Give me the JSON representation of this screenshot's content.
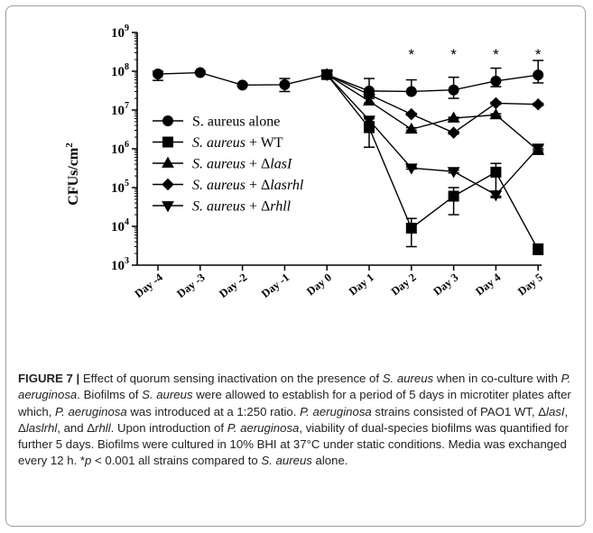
{
  "chart_data": {
    "type": "line",
    "ylabel": "CFUs/cm",
    "ylabel_superscript": "2",
    "yscale": "log",
    "ylim": [
      1000,
      1000000000
    ],
    "yticks": [
      {
        "value": 1000,
        "base": "10",
        "exp": "3"
      },
      {
        "value": 10000,
        "base": "10",
        "exp": "4"
      },
      {
        "value": 100000,
        "base": "10",
        "exp": "5"
      },
      {
        "value": 1000000,
        "base": "10",
        "exp": "6"
      },
      {
        "value": 10000000,
        "base": "10",
        "exp": "7"
      },
      {
        "value": 100000000,
        "base": "10",
        "exp": "8"
      },
      {
        "value": 1000000000,
        "base": "10",
        "exp": "9"
      }
    ],
    "categories": [
      "Day -4",
      "Day -3",
      "Day -2",
      "Day -1",
      "Day 0",
      "Day 1",
      "Day 2",
      "Day 3",
      "Day 4",
      "Day 5"
    ],
    "legend_position": "center-left",
    "series": [
      {
        "name": "S. aureus alone",
        "legend_parts": [
          {
            "text": "S. aureus alone",
            "italic": false
          }
        ],
        "marker": "circle",
        "x": [
          "Day -4",
          "Day -3",
          "Day -2",
          "Day -1",
          "Day 0",
          "Day 1",
          "Day 2",
          "Day 3",
          "Day 4",
          "Day 5"
        ],
        "values": [
          85000000,
          92000000,
          44000000,
          45000000,
          82000000,
          31000000,
          30000000,
          33000000,
          56000000,
          80000000
        ],
        "err_hi": [
          100000000,
          100000000,
          48000000,
          65000000,
          100000000,
          65000000,
          60000000,
          70000000,
          120000000,
          190000000
        ],
        "err_lo": [
          58000000,
          90000000,
          42000000,
          30000000,
          65000000,
          22000000,
          28000000,
          20000000,
          40000000,
          50000000
        ]
      },
      {
        "name": "S. aureus + WT",
        "legend_parts": [
          {
            "text": "S. aureus",
            "italic": true
          },
          {
            "text": " + WT",
            "italic": false
          }
        ],
        "marker": "square",
        "x": [
          "Day 0",
          "Day 1",
          "Day 2",
          "Day 3",
          "Day 4",
          "Day 5"
        ],
        "values": [
          82000000,
          3500000,
          9000,
          60000,
          250000,
          2500
        ],
        "err_hi": [
          100000000,
          6000000,
          16000,
          100000,
          420000,
          3500
        ],
        "err_lo": [
          65000000,
          1100000,
          3000,
          20000,
          60000,
          2000
        ]
      },
      {
        "name": "S. aureus + ΔlasI",
        "legend_parts": [
          {
            "text": "S. aureus",
            "italic": true
          },
          {
            "text": " + Δ",
            "italic": false
          },
          {
            "text": "lasI",
            "italic": true
          }
        ],
        "marker": "triangle-up",
        "x": [
          "Day 0",
          "Day 1",
          "Day 2",
          "Day 3",
          "Day 4",
          "Day 5"
        ],
        "values": [
          82000000,
          17000000,
          3200000,
          6200000,
          7500000,
          900000
        ],
        "err_hi": [
          100000000,
          20000000,
          3500000,
          6500000,
          8000000,
          1000000
        ],
        "err_lo": [
          65000000,
          15000000,
          3000000,
          6000000,
          7000000,
          800000
        ]
      },
      {
        "name": "S. aureus + Δlasrhl",
        "legend_parts": [
          {
            "text": "S. aureus",
            "italic": true
          },
          {
            "text": " + Δ",
            "italic": false
          },
          {
            "text": "lasrhl",
            "italic": true
          }
        ],
        "marker": "diamond",
        "x": [
          "Day 0",
          "Day 1",
          "Day 2",
          "Day 3",
          "Day 4",
          "Day 5"
        ],
        "values": [
          82000000,
          25000000,
          7800000,
          2600000,
          15000000,
          14000000
        ],
        "err_hi": [
          100000000,
          27000000,
          8200000,
          2800000,
          16000000,
          15000000
        ],
        "err_lo": [
          65000000,
          23000000,
          7400000,
          2400000,
          14000000,
          13000000
        ]
      },
      {
        "name": "S. aureus + Δrhll",
        "legend_parts": [
          {
            "text": "S. aureus",
            "italic": true
          },
          {
            "text": " + Δ",
            "italic": false
          },
          {
            "text": "rhll",
            "italic": true
          }
        ],
        "marker": "triangle-down",
        "x": [
          "Day 0",
          "Day 1",
          "Day 2",
          "Day 3",
          "Day 4",
          "Day 5"
        ],
        "values": [
          82000000,
          5500000,
          320000,
          260000,
          65000,
          1050000
        ],
        "err_hi": [
          100000000,
          6000000,
          340000,
          280000,
          80000,
          1200000
        ],
        "err_lo": [
          65000000,
          5000000,
          300000,
          240000,
          55000,
          900000
        ]
      }
    ],
    "annotations": [
      {
        "text": "*",
        "x": "Day 2"
      },
      {
        "text": "*",
        "x": "Day 3"
      },
      {
        "text": "*",
        "x": "Day 4"
      },
      {
        "text": "*",
        "x": "Day 5"
      }
    ]
  },
  "caption": {
    "label": "FIGURE 7 |",
    "parts": [
      {
        "text": " Effect of quorum sensing inactivation on the presence of ",
        "italic": false
      },
      {
        "text": "S. aureus",
        "italic": true
      },
      {
        "text": " when in co-culture with ",
        "italic": false
      },
      {
        "text": "P. aeruginosa",
        "italic": true
      },
      {
        "text": ". Biofilms of ",
        "italic": false
      },
      {
        "text": "S. aureus",
        "italic": true
      },
      {
        "text": " were allowed to establish for a period of 5 days in microtiter plates after which, ",
        "italic": false
      },
      {
        "text": "P. aeruginosa",
        "italic": true
      },
      {
        "text": " was introduced at a 1:250 ratio. ",
        "italic": false
      },
      {
        "text": "P. aeruginosa",
        "italic": true
      },
      {
        "text": " strains consisted of PAO1 WT, Δ",
        "italic": false
      },
      {
        "text": "lasI",
        "italic": true
      },
      {
        "text": ", Δ",
        "italic": false
      },
      {
        "text": "laslrhl",
        "italic": true
      },
      {
        "text": ", and Δ",
        "italic": false
      },
      {
        "text": "rhll",
        "italic": true
      },
      {
        "text": ". Upon introduction of ",
        "italic": false
      },
      {
        "text": "P. aeruginosa",
        "italic": true
      },
      {
        "text": ", viability of dual-species biofilms was quantified for further 5 days. Biofilms were cultured in 10% BHI at 37°C under static conditions. Media was exchanged every 12 h. *",
        "italic": false
      },
      {
        "text": "p",
        "italic": true
      },
      {
        "text": " < 0.001 all strains compared to ",
        "italic": false
      },
      {
        "text": "S. aureus",
        "italic": true
      },
      {
        "text": " alone.",
        "italic": false
      }
    ]
  }
}
